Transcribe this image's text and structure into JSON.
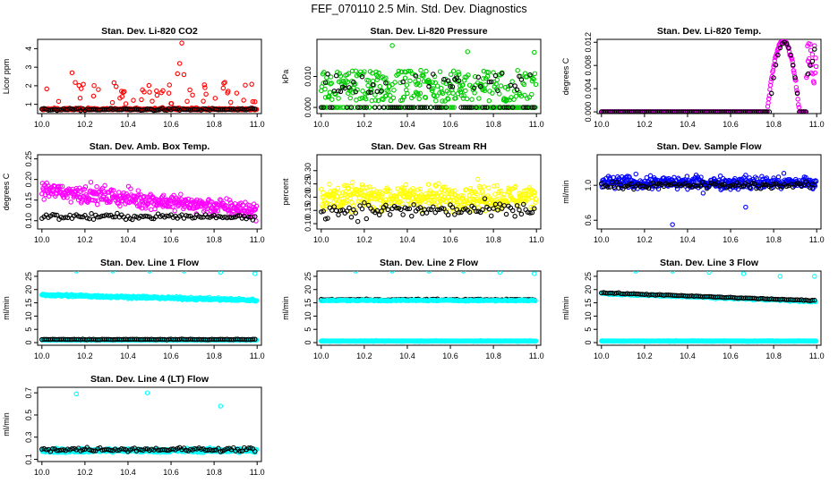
{
  "page_title": "FEF_070110  2.5 Min. Std. Dev. Diagnostics",
  "colors": {
    "red": "#ff0000",
    "green": "#00cc00",
    "magenta": "#ff00ff",
    "yellow": "#ffff00",
    "blue": "#0000ff",
    "cyan": "#00ffff",
    "black": "#000000"
  },
  "chart_data": [
    {
      "type": "scatter",
      "title": "Stan. Dev. Li-820 CO2",
      "ylabel": "Licor ppm",
      "xlim": [
        9.98,
        11.02
      ],
      "ylim": [
        0.5,
        4.5
      ],
      "xticks": [
        "10.0",
        "10.2",
        "10.4",
        "10.6",
        "10.8",
        "11.0"
      ],
      "yticks": [
        "1",
        "2",
        "3",
        "4"
      ],
      "series": [
        {
          "color": "red",
          "gen": "red_co2"
        },
        {
          "color": "black",
          "gen": "black_co2"
        }
      ]
    },
    {
      "type": "scatter",
      "title": "Stan. Dev. Li-820 Pressure",
      "ylabel": "kPa",
      "xlim": [
        9.98,
        11.02
      ],
      "ylim": [
        -0.002,
        0.022
      ],
      "xticks": [
        "10.0",
        "10.2",
        "10.4",
        "10.6",
        "10.8",
        "11.0"
      ],
      "yticks": [
        "0.000",
        "0.010"
      ],
      "series": [
        {
          "color": "green",
          "gen": "green_pres"
        },
        {
          "color": "black",
          "gen": "black_pres"
        }
      ]
    },
    {
      "type": "scatter",
      "title": "Stan. Dev. Li-820 Temp.",
      "ylabel": "degrees C",
      "xlim": [
        9.98,
        11.02
      ],
      "ylim": [
        -0.0003,
        0.0125
      ],
      "xticks": [
        "10.0",
        "10.2",
        "10.4",
        "10.6",
        "10.8",
        "11.0"
      ],
      "yticks": [
        "0.000",
        "0.004",
        "0.008",
        "0.012"
      ],
      "series": [
        {
          "color": "magenta",
          "gen": "mag_temp"
        },
        {
          "color": "black",
          "gen": "black_temp"
        }
      ]
    },
    {
      "type": "scatter",
      "title": "Stan. Dev. Amb. Box Temp.",
      "ylabel": "degrees C",
      "xlim": [
        9.98,
        11.02
      ],
      "ylim": [
        0.08,
        0.26
      ],
      "xticks": [
        "10.0",
        "10.2",
        "10.4",
        "10.6",
        "10.8",
        "11.0"
      ],
      "yticks": [
        "0.10",
        "0.15",
        "0.20",
        "0.25"
      ],
      "series": [
        {
          "color": "magenta",
          "gen": "mag_box"
        },
        {
          "color": "black",
          "gen": "black_box"
        }
      ]
    },
    {
      "type": "scatter",
      "title": "Stan. Dev. Gas Stream RH",
      "ylabel": "percent",
      "xlim": [
        9.98,
        11.02
      ],
      "ylim": [
        0.08,
        0.36
      ],
      "xticks": [
        "10.0",
        "10.2",
        "10.4",
        "10.6",
        "10.8",
        "11.0"
      ],
      "yticks": [
        "0.10",
        "0.15",
        "0.20",
        "0.25",
        "0.30"
      ],
      "series": [
        {
          "color": "yellow",
          "gen": "yellow_rh"
        },
        {
          "color": "black",
          "gen": "black_rh"
        }
      ]
    },
    {
      "type": "scatter",
      "title": "Stan. Dev. Sample Flow",
      "ylabel": "ml/min",
      "xlim": [
        9.98,
        11.02
      ],
      "ylim": [
        0.5,
        1.35
      ],
      "xticks": [
        "10.0",
        "10.2",
        "10.4",
        "10.6",
        "10.8",
        "11.0"
      ],
      "yticks": [
        "0.6",
        "1.0"
      ],
      "series": [
        {
          "color": "blue",
          "gen": "blue_flow"
        },
        {
          "color": "black",
          "gen": "black_flow"
        }
      ]
    },
    {
      "type": "scatter",
      "title": "Stan. Dev. Line 1 Flow",
      "ylabel": "ml/min",
      "xlim": [
        9.98,
        11.02
      ],
      "ylim": [
        -1,
        27
      ],
      "xticks": [
        "10.0",
        "10.2",
        "10.4",
        "10.6",
        "10.8",
        "11.0"
      ],
      "yticks": [
        "0",
        "5",
        "10",
        "15",
        "20",
        "25"
      ],
      "series": [
        {
          "color": "cyan",
          "gen": "cyan_l1"
        },
        {
          "color": "black",
          "gen": "black_l1"
        }
      ]
    },
    {
      "type": "scatter",
      "title": "Stan. Dev. Line 2 Flow",
      "ylabel": "ml/min",
      "xlim": [
        9.98,
        11.02
      ],
      "ylim": [
        -1,
        27
      ],
      "xticks": [
        "10.0",
        "10.2",
        "10.4",
        "10.6",
        "10.8",
        "11.0"
      ],
      "yticks": [
        "0",
        "5",
        "10",
        "15",
        "20",
        "25"
      ],
      "series": [
        {
          "color": "black",
          "gen": "black_l2"
        },
        {
          "color": "cyan",
          "gen": "cyan_l2"
        }
      ]
    },
    {
      "type": "scatter",
      "title": "Stan. Dev. Line 3 Flow",
      "ylabel": "ml/min",
      "xlim": [
        9.98,
        11.02
      ],
      "ylim": [
        -1,
        27
      ],
      "xticks": [
        "10.0",
        "10.2",
        "10.4",
        "10.6",
        "10.8",
        "11.0"
      ],
      "yticks": [
        "0",
        "5",
        "10",
        "15",
        "20",
        "25"
      ],
      "series": [
        {
          "color": "cyan",
          "gen": "cyan_l3"
        },
        {
          "color": "black",
          "gen": "black_l3"
        }
      ]
    },
    {
      "type": "scatter",
      "title": "Stan. Dev. Line 4 (LT) Flow",
      "ylabel": "ml/min",
      "xlim": [
        9.98,
        11.02
      ],
      "ylim": [
        0.08,
        0.75
      ],
      "xticks": [
        "10.0",
        "10.2",
        "10.4",
        "10.6",
        "10.8",
        "11.0"
      ],
      "yticks": [
        "0.1",
        "0.3",
        "0.5",
        "0.7"
      ],
      "series": [
        {
          "color": "cyan",
          "gen": "cyan_l4"
        },
        {
          "color": "black",
          "gen": "black_l4"
        }
      ]
    }
  ]
}
